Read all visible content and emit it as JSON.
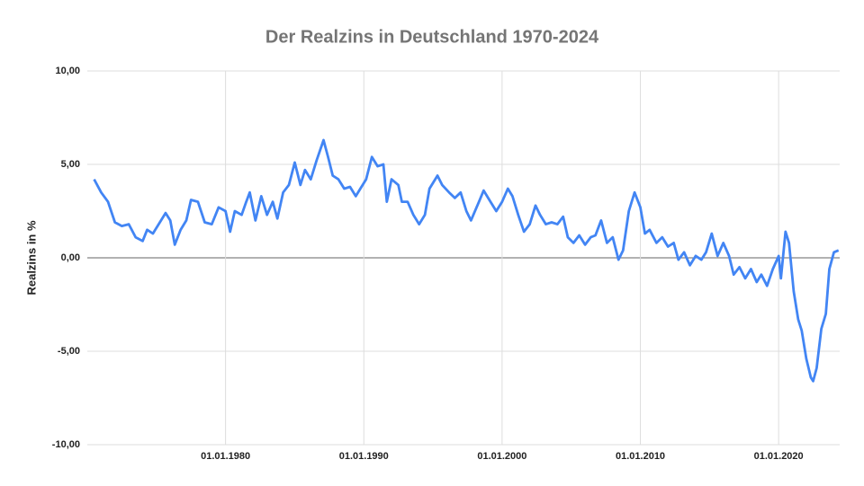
{
  "chart_data": {
    "type": "line",
    "title": "Der Realzins in Deutschland 1970-2024",
    "y_label": "Realzins in %",
    "x": [
      "1970-07-01",
      "1971-01-01",
      "1971-07-01",
      "1972-01-01",
      "1972-07-01",
      "1973-01-01",
      "1973-07-01",
      "1974-01-01",
      "1974-05-01",
      "1974-10-01",
      "1975-03-01",
      "1975-09-01",
      "1976-01-01",
      "1976-05-01",
      "1976-10-01",
      "1977-03-01",
      "1977-07-01",
      "1978-01-01",
      "1978-07-01",
      "1979-01-01",
      "1979-07-01",
      "1980-01-01",
      "1980-05-01",
      "1980-09-01",
      "1981-03-01",
      "1981-07-01",
      "1981-10-01",
      "1982-03-01",
      "1982-08-01",
      "1983-01-01",
      "1983-06-01",
      "1983-10-01",
      "1984-03-01",
      "1984-08-01",
      "1985-01-01",
      "1985-06-01",
      "1985-10-01",
      "1986-03-01",
      "1986-08-01",
      "1987-02-01",
      "1987-06-01",
      "1987-10-01",
      "1988-03-01",
      "1988-08-01",
      "1989-01-01",
      "1989-06-01",
      "1989-10-01",
      "1990-03-01",
      "1990-08-01",
      "1991-01-01",
      "1991-06-01",
      "1991-09-01",
      "1992-01-01",
      "1992-07-01",
      "1992-10-01",
      "1993-03-01",
      "1993-08-01",
      "1994-01-01",
      "1994-06-01",
      "1994-10-01",
      "1995-05-01",
      "1995-09-01",
      "1996-03-01",
      "1996-08-01",
      "1997-01-01",
      "1997-06-01",
      "1997-10-01",
      "1998-05-01",
      "1998-09-01",
      "1999-03-01",
      "1999-08-01",
      "2000-01-01",
      "2000-06-01",
      "2000-10-01",
      "2001-03-01",
      "2001-08-01",
      "2002-01-01",
      "2002-06-01",
      "2002-10-01",
      "2003-03-01",
      "2003-08-01",
      "2004-01-01",
      "2004-06-01",
      "2004-10-01",
      "2005-03-01",
      "2005-08-01",
      "2006-01-01",
      "2006-06-01",
      "2006-10-01",
      "2007-03-01",
      "2007-08-01",
      "2008-01-01",
      "2008-06-01",
      "2008-10-01",
      "2009-03-01",
      "2009-08-01",
      "2010-01-01",
      "2010-05-01",
      "2010-09-01",
      "2011-03-01",
      "2011-08-01",
      "2012-01-01",
      "2012-06-01",
      "2012-10-01",
      "2013-03-01",
      "2013-08-01",
      "2014-01-01",
      "2014-06-01",
      "2014-10-01",
      "2015-03-01",
      "2015-08-01",
      "2016-01-01",
      "2016-06-01",
      "2016-10-01",
      "2017-03-01",
      "2017-08-01",
      "2018-01-01",
      "2018-06-01",
      "2018-10-01",
      "2019-03-01",
      "2019-08-01",
      "2020-01-01",
      "2020-03-01",
      "2020-07-01",
      "2020-10-01",
      "2021-02-01",
      "2021-06-01",
      "2021-09-01",
      "2022-01-01",
      "2022-05-01",
      "2022-07-01",
      "2022-10-01",
      "2023-02-01",
      "2023-06-01",
      "2023-09-01",
      "2024-01-01",
      "2024-05-01"
    ],
    "series": [
      {
        "name": "Realzins in %",
        "color": "#4285f4",
        "values": [
          4.2,
          3.5,
          3.0,
          1.9,
          1.7,
          1.8,
          1.1,
          0.9,
          1.5,
          1.3,
          1.8,
          2.4,
          2.0,
          0.7,
          1.5,
          2.0,
          3.1,
          3.0,
          1.9,
          1.8,
          2.7,
          2.5,
          1.4,
          2.5,
          2.3,
          3.0,
          3.5,
          2.0,
          3.3,
          2.3,
          3.0,
          2.1,
          3.5,
          3.9,
          5.1,
          3.9,
          4.7,
          4.2,
          5.2,
          6.3,
          5.4,
          4.4,
          4.2,
          3.7,
          3.8,
          3.3,
          3.7,
          4.2,
          5.4,
          4.9,
          5.0,
          3.0,
          4.2,
          3.9,
          3.0,
          3.0,
          2.3,
          1.8,
          2.3,
          3.7,
          4.4,
          3.9,
          3.5,
          3.2,
          3.5,
          2.5,
          2.0,
          3.0,
          3.6,
          3.0,
          2.5,
          3.0,
          3.7,
          3.3,
          2.3,
          1.4,
          1.8,
          2.8,
          2.3,
          1.8,
          1.9,
          1.8,
          2.2,
          1.1,
          0.8,
          1.2,
          0.7,
          1.1,
          1.2,
          2.0,
          0.8,
          1.1,
          -0.1,
          0.4,
          2.5,
          3.5,
          2.7,
          1.3,
          1.5,
          0.8,
          1.1,
          0.6,
          0.8,
          -0.1,
          0.3,
          -0.4,
          0.1,
          -0.1,
          0.3,
          1.3,
          0.1,
          0.8,
          0.1,
          -0.9,
          -0.5,
          -1.1,
          -0.6,
          -1.3,
          -0.9,
          -1.5,
          -0.6,
          0.1,
          -1.1,
          1.4,
          0.8,
          -1.8,
          -3.3,
          -3.9,
          -5.4,
          -6.4,
          -6.6,
          -5.9,
          -3.8,
          -3.0,
          -0.6,
          0.3,
          0.4
        ]
      }
    ],
    "xlim": [
      "1970-01-01",
      "2024-06-01"
    ],
    "xticks": [
      {
        "value": "1980-01-01",
        "label": "01.01.1980"
      },
      {
        "value": "1990-01-01",
        "label": "01.01.1990"
      },
      {
        "value": "2000-01-01",
        "label": "01.01.2000"
      },
      {
        "value": "2010-01-01",
        "label": "01.01.2010"
      },
      {
        "value": "2020-01-01",
        "label": "01.01.2020"
      }
    ],
    "ylim": [
      -10,
      10
    ],
    "yticks": [
      {
        "value": -10,
        "label": "-10,00"
      },
      {
        "value": -5,
        "label": "-5,00"
      },
      {
        "value": 0,
        "label": "0,00"
      },
      {
        "value": 5,
        "label": "5,00"
      },
      {
        "value": 10,
        "label": "10,00"
      }
    ],
    "grid": true
  }
}
